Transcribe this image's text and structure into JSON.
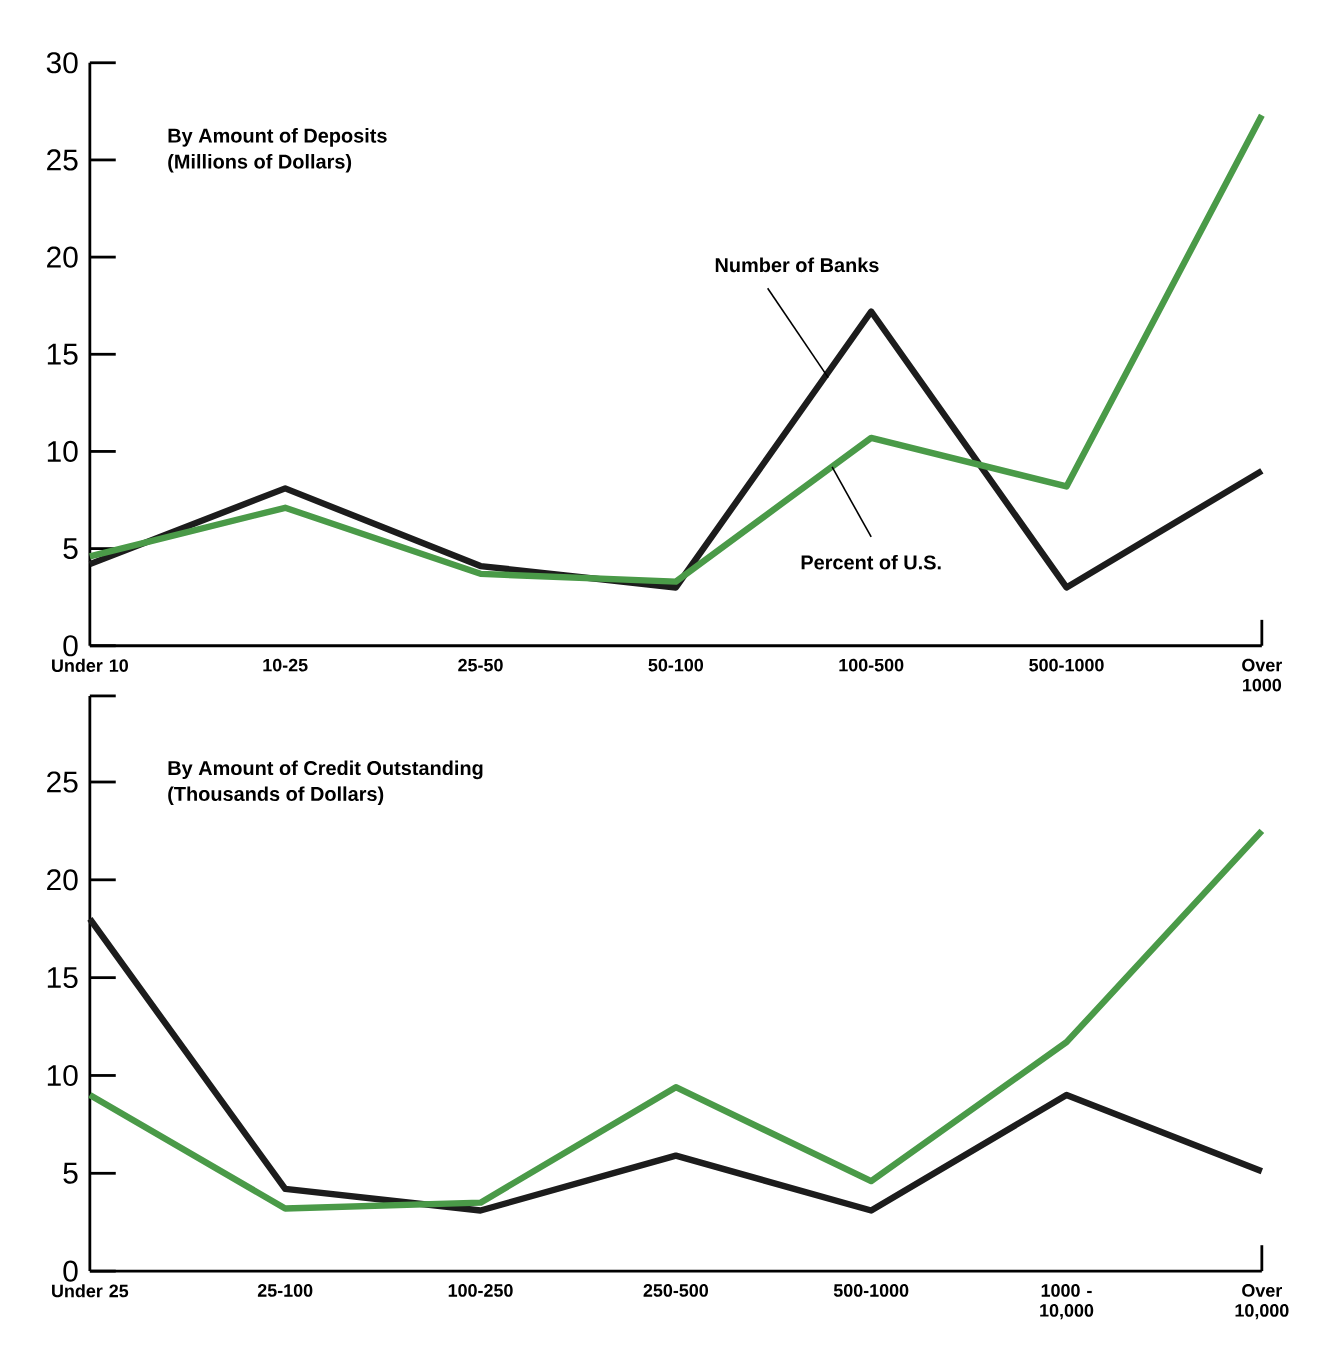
{
  "chart_data": [
    {
      "type": "line",
      "title": "By Amount of Deposits",
      "subtitle": "(Millions of Dollars)",
      "categories": [
        "Under 10",
        "10-25",
        "25-50",
        "50-100",
        "100-500",
        "500-1000",
        "Over 1000"
      ],
      "series": [
        {
          "name": "Number of Banks",
          "color": "#1c1c1c",
          "values": [
            4.2,
            8.1,
            4.1,
            3.0,
            17.2,
            3.0,
            9.0
          ]
        },
        {
          "name": "Percent of U.S.",
          "color": "#4a9a48",
          "values": [
            4.6,
            7.1,
            3.7,
            3.3,
            10.7,
            8.2,
            27.3
          ]
        }
      ],
      "ylim": [
        0,
        30
      ],
      "yticks": [
        0,
        5,
        10,
        15,
        20,
        25,
        30
      ]
    },
    {
      "type": "line",
      "title": "By Amount of Credit Outstanding",
      "subtitle": "(Thousands of Dollars)",
      "categories": [
        "Under 25",
        "25-100",
        "100-250",
        "250-500",
        "500-1000",
        "1000 - 10,000",
        "Over 10,000"
      ],
      "series": [
        {
          "color": "#1c1c1c",
          "values": [
            18.0,
            4.2,
            3.1,
            5.9,
            3.1,
            9.0,
            5.1
          ]
        },
        {
          "color": "#4a9a48",
          "values": [
            9.0,
            3.2,
            3.5,
            9.4,
            4.6,
            11.7,
            22.5
          ]
        }
      ],
      "ylim": [
        0,
        29.4
      ],
      "yticks": [
        0,
        5,
        10,
        15,
        20,
        25,
        {
          "value": 29.4,
          "label": null
        }
      ]
    }
  ]
}
